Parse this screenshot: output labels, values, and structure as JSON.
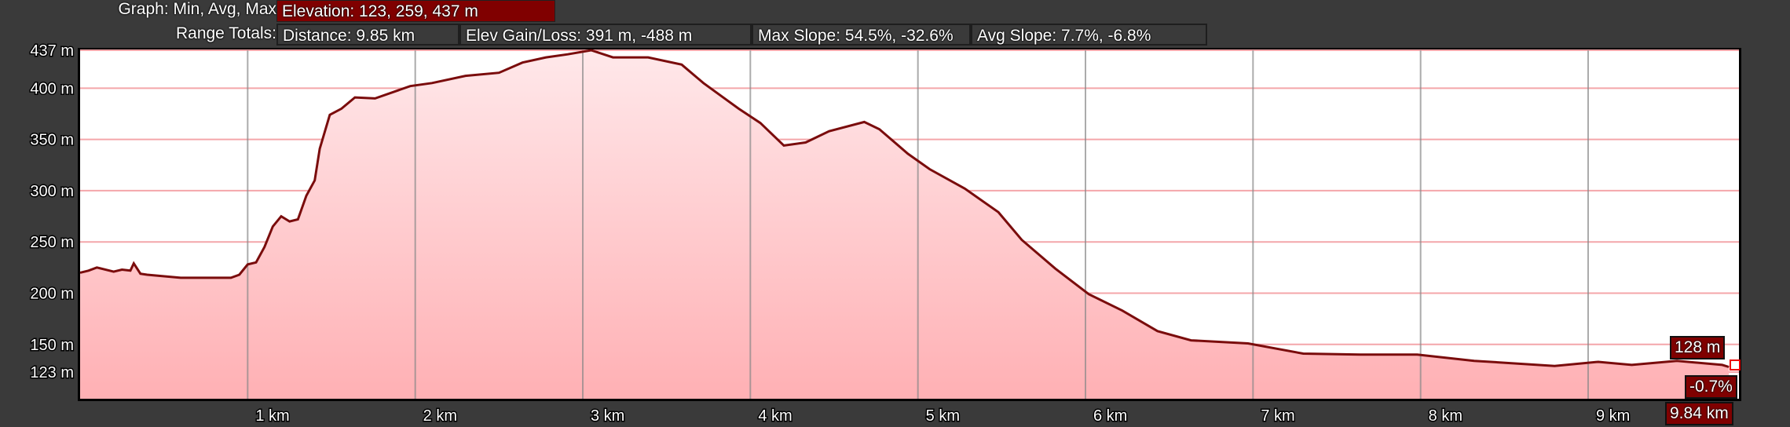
{
  "header": {
    "graph_label": "Graph: Min, Avg, Max",
    "elevation": "Elevation: 123, 259, 437 m",
    "range_label": "Range Totals:",
    "distance": "Distance: 9.85 km",
    "elev_gain_loss": "Elev Gain/Loss: 391 m, -488 m",
    "max_slope": "Max Slope: 54.5%, -32.6%",
    "avg_slope": "Avg Slope: 7.7%, -6.8%"
  },
  "cursor": {
    "elevation": "128 m",
    "slope": "-0.7%",
    "distance": "9.84 km"
  },
  "colors": {
    "line": "#7a0c0c",
    "fill_top": "#ffe8ea",
    "fill_bottom": "#ffb0b4",
    "accent": "#800000",
    "grid_h": "#f4a6aa",
    "grid_v": "#888888"
  },
  "chart_data": {
    "type": "area",
    "xlabel": "",
    "ylabel": "",
    "xlim": [
      0,
      9.9
    ],
    "ylim": [
      97,
      437
    ],
    "grid": true,
    "x_ticks": [
      {
        "v": 1,
        "label": "1 km"
      },
      {
        "v": 2,
        "label": "2 km"
      },
      {
        "v": 3,
        "label": "3 km"
      },
      {
        "v": 4,
        "label": "4 km"
      },
      {
        "v": 5,
        "label": "5 km"
      },
      {
        "v": 6,
        "label": "6 km"
      },
      {
        "v": 7,
        "label": "7 km"
      },
      {
        "v": 8,
        "label": "8 km"
      },
      {
        "v": 9,
        "label": "9 km"
      }
    ],
    "y_ticks": [
      {
        "v": 437,
        "label": "437 m"
      },
      {
        "v": 400,
        "label": "400 m"
      },
      {
        "v": 350,
        "label": "350 m"
      },
      {
        "v": 300,
        "label": "300 m"
      },
      {
        "v": 250,
        "label": "250 m"
      },
      {
        "v": 200,
        "label": "200 m"
      },
      {
        "v": 150,
        "label": "150 m"
      },
      {
        "v": 123,
        "label": "123 m"
      }
    ],
    "x": [
      0,
      0.05,
      0.1,
      0.2,
      0.25,
      0.3,
      0.32,
      0.36,
      0.4,
      0.6,
      0.9,
      0.95,
      1.0,
      1.05,
      1.1,
      1.15,
      1.2,
      1.25,
      1.3,
      1.35,
      1.4,
      1.43,
      1.49,
      1.56,
      1.64,
      1.76,
      1.97,
      2.1,
      2.3,
      2.5,
      2.64,
      2.78,
      2.91,
      3.05,
      3.18,
      3.39,
      3.59,
      3.72,
      3.93,
      4.06,
      4.2,
      4.33,
      4.47,
      4.68,
      4.77,
      4.94,
      5.07,
      5.28,
      5.48,
      5.62,
      5.82,
      6.02,
      6.22,
      6.43,
      6.63,
      6.97,
      7.3,
      7.64,
      7.98,
      8.32,
      8.8,
      9.06,
      9.26,
      9.53,
      9.8,
      9.84
    ],
    "y": [
      220,
      222,
      225,
      221,
      223,
      222,
      229,
      219,
      218,
      215,
      215,
      218,
      228,
      230,
      245,
      265,
      275,
      270,
      272,
      295,
      310,
      341,
      374,
      380,
      391,
      390,
      402,
      405,
      412,
      415,
      425,
      430,
      433,
      437,
      430,
      430,
      423,
      405,
      380,
      366,
      344,
      347,
      358,
      367,
      360,
      336,
      321,
      302,
      279,
      252,
      224,
      199,
      183,
      163,
      154,
      151,
      141,
      140,
      140,
      134,
      129,
      133,
      130,
      134,
      130,
      128
    ]
  }
}
